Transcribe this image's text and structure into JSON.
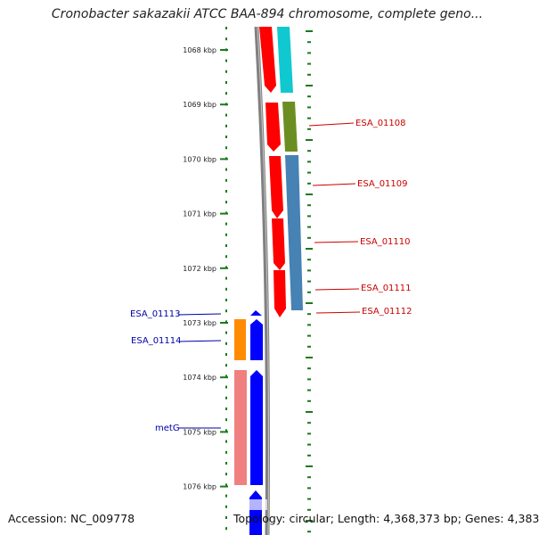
{
  "title": "Cronobacter sakazakii ATCC BAA-894 chromosome, complete geno...",
  "accession": "Accession: NC_009778",
  "footer_info": "Topology: circular; Length: 4,368,373 bp; Genes: 4,383",
  "axis_ticks": [
    "1068 kbp",
    "1069 kbp",
    "1070 kbp",
    "1071 kbp",
    "1072 kbp",
    "1073 kbp",
    "1074 kbp",
    "1075 kbp",
    "1076 kbp"
  ],
  "colors": {
    "tick": "#1a7a1a",
    "backbone": "#808080",
    "red_gene": "#ff0000",
    "red_label": "#cc0000",
    "blue_gene": "#0000ff",
    "blue_label": "#0000aa",
    "cyan": "#10c8d0",
    "olive": "#6b8e23",
    "steelblue": "#4682b4",
    "orange": "#ff8c00",
    "pink": "#f08080"
  },
  "right_labels": [
    "ESA_01108",
    "ESA_01109",
    "ESA_01110",
    "ESA_01111",
    "ESA_01112"
  ],
  "left_labels": [
    "ESA_01113",
    "ESA_01114",
    "metG"
  ]
}
